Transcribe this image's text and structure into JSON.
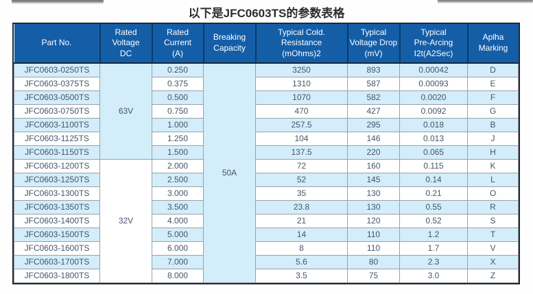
{
  "page": {
    "title": "以下是JFC0603TS的参数表格"
  },
  "table": {
    "headers": [
      {
        "id": "part-no",
        "label": "Part No."
      },
      {
        "id": "rated-voltage",
        "label": "Rated\nVoltage\nDC"
      },
      {
        "id": "rated-current",
        "label": "Rated\nCurrent\n(A)"
      },
      {
        "id": "breaking-capacity",
        "label": "Breaking\nCapacity"
      },
      {
        "id": "cold-resistance",
        "label": "Typical Cold.\nResistance\n(mOhms)2"
      },
      {
        "id": "voltage-drop",
        "label": "Typical\nVoltage Drop\n(mV)"
      },
      {
        "id": "pre-arcing",
        "label": "Typical\nPre-Arcing\nI2t(A2Sec)"
      },
      {
        "id": "alpha-marking",
        "label": "Aplha\nMarking"
      }
    ],
    "voltage_groups": [
      {
        "label": "63V",
        "rows": 7
      },
      {
        "label": "32V",
        "rows": 9
      }
    ],
    "breaking_capacity": "50A",
    "breaking_capacity_rows": 16,
    "rows": [
      {
        "part": "JFC0603-0250TS",
        "current": "0.250",
        "resistance": "3250",
        "voltage_drop": "893",
        "pre_arcing": "0.00042",
        "marking": "D"
      },
      {
        "part": "JFC0603-0375TS",
        "current": "0.375",
        "resistance": "1310",
        "voltage_drop": "587",
        "pre_arcing": "0.00093",
        "marking": "E"
      },
      {
        "part": "JFC0603-0500TS",
        "current": "0.500",
        "resistance": "1070",
        "voltage_drop": "582",
        "pre_arcing": "0.0020",
        "marking": "F"
      },
      {
        "part": "JFC0603-0750TS",
        "current": "0.750",
        "resistance": "470",
        "voltage_drop": "427",
        "pre_arcing": "0.0092",
        "marking": "G"
      },
      {
        "part": "JFC0603-1100TS",
        "current": "1.000",
        "resistance": "257.5",
        "voltage_drop": "295",
        "pre_arcing": "0.018",
        "marking": "B"
      },
      {
        "part": "JFC0603-1125TS",
        "current": "1.250",
        "resistance": "104",
        "voltage_drop": "146",
        "pre_arcing": "0.013",
        "marking": "J"
      },
      {
        "part": "JFC0603-1150TS",
        "current": "1.500",
        "resistance": "137.5",
        "voltage_drop": "220",
        "pre_arcing": "0.065",
        "marking": "H"
      },
      {
        "part": "JFC0603-1200TS",
        "current": "2.000",
        "resistance": "72",
        "voltage_drop": "160",
        "pre_arcing": "0.115",
        "marking": "K"
      },
      {
        "part": "JFC0603-1250TS",
        "current": "2.500",
        "resistance": "52",
        "voltage_drop": "145",
        "pre_arcing": "0.14",
        "marking": "L"
      },
      {
        "part": "JFC0603-1300TS",
        "current": "3.000",
        "resistance": "35",
        "voltage_drop": "130",
        "pre_arcing": "0.21",
        "marking": "O"
      },
      {
        "part": "JFC0603-1350TS",
        "current": "3.500",
        "resistance": "23.8",
        "voltage_drop": "130",
        "pre_arcing": "0.55",
        "marking": "R"
      },
      {
        "part": "JFC0603-1400TS",
        "current": "4.000",
        "resistance": "21",
        "voltage_drop": "120",
        "pre_arcing": "0.52",
        "marking": "S"
      },
      {
        "part": "JFC0603-1500TS",
        "current": "5.000",
        "resistance": "14",
        "voltage_drop": "110",
        "pre_arcing": "1.2",
        "marking": "T"
      },
      {
        "part": "JFC0603-1600TS",
        "current": "6.000",
        "resistance": "8",
        "voltage_drop": "110",
        "pre_arcing": "1.7",
        "marking": "V"
      },
      {
        "part": "JFC0603-1700TS",
        "current": "7.000",
        "resistance": "5.6",
        "voltage_drop": "80",
        "pre_arcing": "2.3",
        "marking": "X"
      },
      {
        "part": "JFC0603-1800TS",
        "current": "8.000",
        "resistance": "3.5",
        "voltage_drop": "75",
        "pre_arcing": "3.0",
        "marking": "Z"
      }
    ],
    "colors": {
      "header_bg": "#145EA8",
      "alt_row_bg": "#D3EDFA",
      "grid_line": "#98A0A8",
      "outer_border": "#23272E",
      "body_text": "#44546A"
    }
  }
}
